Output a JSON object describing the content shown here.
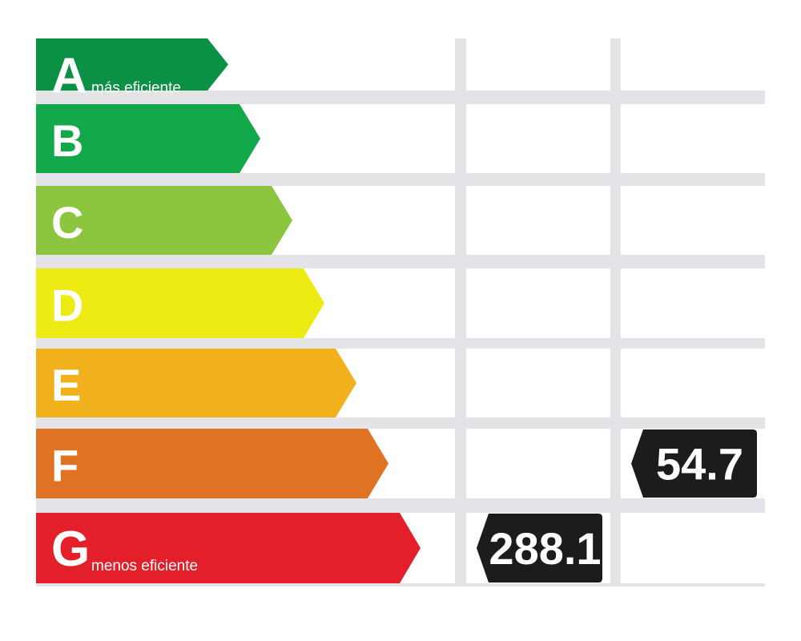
{
  "rows": [
    {
      "letter": "A",
      "note": "más eficiente",
      "color": "#0a9145"
    },
    {
      "letter": "B",
      "color": "#13a84a"
    },
    {
      "letter": "C",
      "color": "#8cc63f"
    },
    {
      "letter": "D",
      "color": "#eeea14"
    },
    {
      "letter": "E",
      "color": "#f0b11d"
    },
    {
      "letter": "F",
      "color": "#e07224"
    },
    {
      "letter": "G",
      "note": "menos eficiente",
      "color": "#e3202a"
    }
  ],
  "columns": [
    {
      "cells": [
        null,
        null,
        null,
        null,
        null,
        null,
        288.1
      ]
    },
    {
      "cells": [
        null,
        null,
        null,
        null,
        null,
        54.7,
        null
      ]
    }
  ]
}
